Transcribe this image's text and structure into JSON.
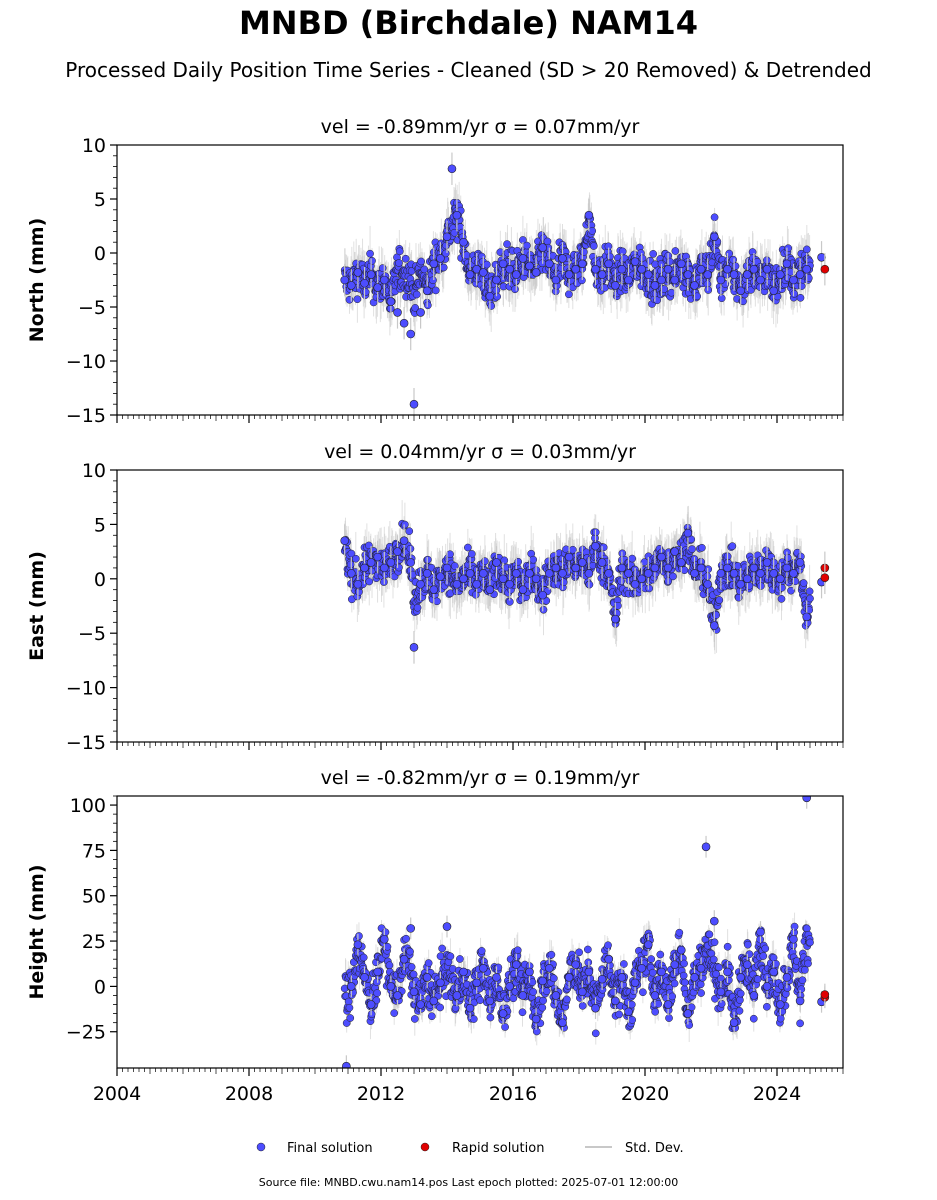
{
  "title": "MNBD (Birchdale) NAM14",
  "subtitle": "Processed Daily Position Time Series - Cleaned (SD > 20 Removed) & Detrended",
  "footnote": "Source file: MNBD.cwu.nam14.pos  Last epoch plotted: 2025-07-01 12:00:00",
  "legend": {
    "final": "Final solution",
    "rapid": "Rapid solution",
    "std": "Std. Dev."
  },
  "colors": {
    "final": "#4d4dff",
    "rapid": "#e00000",
    "std": "#c8c8c8",
    "marker_edge": "#222222"
  },
  "chart_data": [
    {
      "type": "scatter",
      "panel": "north",
      "annotation": "vel = -0.89mm/yr   σ = 0.07mm/yr",
      "ylabel": "North (mm)",
      "xlim": [
        2004,
        2026
      ],
      "ylim": [
        -15,
        10
      ],
      "yticks": [
        -15,
        -10,
        -5,
        0,
        5,
        10
      ],
      "xticks": [
        2004,
        2008,
        2012,
        2016,
        2020,
        2024
      ],
      "show_xtick_labels": false,
      "grid": false,
      "series": [
        {
          "name": "Final solution",
          "x": [
            2010.9,
            2011.1,
            2011.3,
            2011.5,
            2011.7,
            2011.9,
            2012.1,
            2012.3,
            2012.5,
            2012.7,
            2012.9,
            2013.0,
            2013.2,
            2013.4,
            2013.6,
            2013.8,
            2014.0,
            2014.15,
            2014.3,
            2014.5,
            2014.7,
            2014.9,
            2015.1,
            2015.3,
            2015.5,
            2015.7,
            2015.9,
            2016.1,
            2016.3,
            2016.5,
            2016.7,
            2016.9,
            2017.1,
            2017.3,
            2017.5,
            2017.7,
            2017.9,
            2018.1,
            2018.3,
            2018.5,
            2018.7,
            2018.9,
            2019.1,
            2019.3,
            2019.5,
            2019.7,
            2019.9,
            2020.1,
            2020.3,
            2020.5,
            2020.7,
            2020.9,
            2021.1,
            2021.3,
            2021.5,
            2021.7,
            2021.9,
            2022.1,
            2022.3,
            2022.5,
            2022.7,
            2022.9,
            2023.1,
            2023.3,
            2023.5,
            2023.7,
            2023.9,
            2024.1,
            2024.3,
            2024.5,
            2024.7,
            2024.9,
            2025.35
          ],
          "y": [
            -2.5,
            -3.0,
            -1.8,
            -2.8,
            -2.0,
            -3.2,
            -2.5,
            -4.5,
            -5.5,
            -6.5,
            -7.5,
            -14.0,
            -5.5,
            -3.5,
            -1.0,
            -0.5,
            1.5,
            7.8,
            3.5,
            1.0,
            -2.0,
            -1.5,
            -1.8,
            -4.0,
            -2.5,
            -1.0,
            -1.5,
            -2.0,
            -0.5,
            -1.2,
            -1.8,
            0.5,
            -1.0,
            -2.5,
            -0.5,
            -2.0,
            -1.5,
            -1.0,
            3.5,
            -1.5,
            -2.0,
            -1.0,
            -3.0,
            -1.5,
            -2.5,
            -0.8,
            -1.5,
            -2.0,
            -3.0,
            -2.5,
            -1.5,
            -2.5,
            -1.0,
            -2.0,
            -3.0,
            -1.5,
            -2.0,
            1.5,
            -2.5,
            -1.5,
            -2.0,
            -3.5,
            -2.0,
            -1.5,
            -2.5,
            -1.5,
            -3.5,
            -2.0,
            -1.0,
            -2.5,
            -2.0,
            -1.5,
            -0.4
          ]
        },
        {
          "name": "Rapid solution",
          "x": [
            2025.45
          ],
          "y": [
            -1.5
          ]
        }
      ]
    },
    {
      "type": "scatter",
      "panel": "east",
      "annotation": "vel = 0.04mm/yr   σ = 0.03mm/yr",
      "ylabel": "East (mm)",
      "xlim": [
        2004,
        2026
      ],
      "ylim": [
        -15,
        10
      ],
      "yticks": [
        -15,
        -10,
        -5,
        0,
        5,
        10
      ],
      "xticks": [
        2004,
        2008,
        2012,
        2016,
        2020,
        2024
      ],
      "show_xtick_labels": false,
      "grid": false,
      "series": [
        {
          "name": "Final solution",
          "x": [
            2010.9,
            2011.1,
            2011.3,
            2011.5,
            2011.7,
            2011.9,
            2012.1,
            2012.3,
            2012.5,
            2012.7,
            2012.9,
            2013.0,
            2013.2,
            2013.4,
            2013.6,
            2013.8,
            2014.0,
            2014.3,
            2014.5,
            2014.7,
            2014.9,
            2015.1,
            2015.3,
            2015.5,
            2015.7,
            2015.9,
            2016.1,
            2016.3,
            2016.5,
            2016.7,
            2016.9,
            2017.1,
            2017.3,
            2017.5,
            2017.7,
            2017.9,
            2018.1,
            2018.3,
            2018.5,
            2018.7,
            2018.9,
            2019.1,
            2019.3,
            2019.5,
            2019.7,
            2019.9,
            2020.1,
            2020.3,
            2020.5,
            2020.7,
            2020.9,
            2021.1,
            2021.3,
            2021.5,
            2021.7,
            2021.9,
            2022.1,
            2022.3,
            2022.5,
            2022.7,
            2022.9,
            2023.1,
            2023.3,
            2023.5,
            2023.7,
            2023.9,
            2024.1,
            2024.3,
            2024.5,
            2024.7,
            2024.9,
            2025.35
          ],
          "y": [
            3.5,
            0.5,
            -0.5,
            1.0,
            1.5,
            2.0,
            1.0,
            1.5,
            2.5,
            3.5,
            1.5,
            -6.3,
            -0.5,
            0.5,
            -1.0,
            0.2,
            1.0,
            -0.5,
            0.0,
            0.5,
            -0.5,
            0.5,
            -1.0,
            1.5,
            0.0,
            -0.5,
            0.5,
            -1.0,
            0.5,
            0.0,
            -1.5,
            0.5,
            1.0,
            0.5,
            2.0,
            1.0,
            1.5,
            0.5,
            3.0,
            1.5,
            0.5,
            -3.7,
            1.0,
            0.5,
            -0.5,
            0.0,
            0.5,
            1.0,
            2.0,
            1.0,
            2.5,
            1.5,
            4.2,
            0.5,
            1.0,
            -0.5,
            -4.3,
            0.5,
            1.0,
            0.5,
            -0.5,
            0.0,
            1.0,
            0.5,
            1.5,
            0.5,
            0.0,
            1.0,
            0.5,
            1.5,
            -3.5,
            -0.3
          ]
        },
        {
          "name": "Rapid solution",
          "x": [
            2025.45,
            2025.45
          ],
          "y": [
            1.0,
            0.1
          ]
        }
      ]
    },
    {
      "type": "scatter",
      "panel": "height",
      "annotation": "vel = -0.82mm/yr   σ = 0.19mm/yr",
      "ylabel": "Height (mm)",
      "xlim": [
        2004,
        2026
      ],
      "ylim": [
        -45,
        105
      ],
      "yticks": [
        -25,
        0,
        25,
        50,
        75,
        100
      ],
      "xticks": [
        2004,
        2008,
        2012,
        2016,
        2020,
        2024
      ],
      "show_xtick_labels": true,
      "grid": false,
      "series": [
        {
          "name": "Final solution",
          "x": [
            2010.95,
            2011.1,
            2011.3,
            2011.5,
            2011.7,
            2011.9,
            2012.1,
            2012.3,
            2012.5,
            2012.7,
            2012.9,
            2013.0,
            2013.2,
            2013.4,
            2013.6,
            2013.8,
            2014.0,
            2014.3,
            2014.5,
            2014.7,
            2014.9,
            2015.1,
            2015.3,
            2015.5,
            2015.7,
            2015.9,
            2016.1,
            2016.3,
            2016.5,
            2016.7,
            2016.9,
            2017.1,
            2017.3,
            2017.5,
            2017.7,
            2017.9,
            2018.1,
            2018.3,
            2018.5,
            2018.7,
            2018.9,
            2019.1,
            2019.3,
            2019.5,
            2019.7,
            2019.9,
            2020.1,
            2020.3,
            2020.5,
            2020.7,
            2020.9,
            2021.1,
            2021.3,
            2021.5,
            2021.7,
            2021.85,
            2022.1,
            2022.3,
            2022.5,
            2022.7,
            2022.9,
            2023.1,
            2023.3,
            2023.5,
            2023.7,
            2023.9,
            2024.1,
            2024.3,
            2024.5,
            2024.7,
            2024.9,
            2025.35
          ],
          "y": [
            -44.0,
            0.0,
            23.0,
            5.0,
            -10.0,
            8.0,
            26.0,
            0.0,
            -5.0,
            15.0,
            32.0,
            -3.0,
            -10.0,
            5.0,
            -8.0,
            2.0,
            33.0,
            -5.0,
            8.0,
            -12.0,
            2.0,
            10.0,
            -8.0,
            5.0,
            -15.0,
            0.0,
            12.0,
            -5.0,
            8.0,
            -18.0,
            3.0,
            10.0,
            -5.0,
            -20.0,
            5.0,
            12.0,
            -3.0,
            8.0,
            -12.0,
            4.0,
            15.0,
            -8.0,
            5.0,
            -14.0,
            2.0,
            10.0,
            23.0,
            -5.0,
            8.0,
            -10.0,
            12.0,
            20.0,
            -15.0,
            5.0,
            10.0,
            77.0,
            36.0,
            -3.0,
            8.0,
            -20.0,
            5.0,
            12.0,
            -5.0,
            30.0,
            0.0,
            8.0,
            -10.0,
            5.0,
            26.0,
            -8.0,
            104.0,
            -8.5
          ]
        },
        {
          "name": "Rapid solution",
          "x": [
            2025.45,
            2025.45
          ],
          "y": [
            -6.0,
            -4.5
          ]
        }
      ]
    }
  ]
}
